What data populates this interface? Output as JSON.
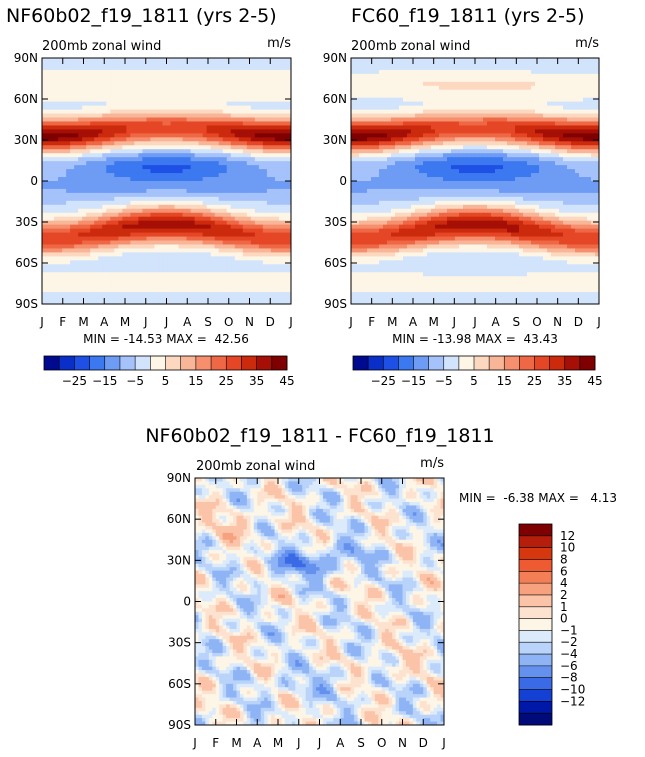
{
  "chart_data": [
    {
      "type": "heatmap",
      "id": "panel1",
      "title": "NF60b02_f19_1811 (yrs 2-5)",
      "subtitle": "200mb zonal wind",
      "units": "m/s",
      "x_ticks": [
        "J",
        "F",
        "M",
        "A",
        "M",
        "J",
        "J",
        "A",
        "S",
        "O",
        "N",
        "D",
        "J"
      ],
      "y_ticks": [
        "90N",
        "60N",
        "30N",
        "0",
        "30S",
        "60S",
        "90S"
      ],
      "min_label": "MIN = -14.53 MAX =  42.56",
      "min": -14.53,
      "max": 42.56,
      "levels": [
        -25,
        -15,
        -5,
        5,
        15,
        25,
        35,
        45
      ],
      "colorbar_labels": [
        "-25",
        "-15",
        "-5",
        "5",
        "15",
        "25",
        "35",
        "45"
      ],
      "colors": [
        "#000a8f",
        "#0a2ec8",
        "#1e50e6",
        "#3c78f0",
        "#6e9cf5",
        "#a5c3fa",
        "#d2e3fc",
        "#fdf5e6",
        "#fbd8bf",
        "#f8b597",
        "#f58f6e",
        "#ef6845",
        "#e54626",
        "#cc2a0c",
        "#a50f05",
        "#7e0000"
      ]
    },
    {
      "type": "heatmap",
      "id": "panel2",
      "title": "FC60_f19_1811 (yrs 2-5)",
      "subtitle": "200mb zonal wind",
      "units": "m/s",
      "x_ticks": [
        "J",
        "F",
        "M",
        "A",
        "M",
        "J",
        "J",
        "A",
        "S",
        "O",
        "N",
        "D",
        "J"
      ],
      "y_ticks": [
        "90N",
        "60N",
        "30N",
        "0",
        "30S",
        "60S",
        "90S"
      ],
      "min_label": "MIN = -13.98 MAX =  43.43",
      "min": -13.98,
      "max": 43.43,
      "levels": [
        -25,
        -15,
        -5,
        5,
        15,
        25,
        35,
        45
      ],
      "colorbar_labels": [
        "-25",
        "-15",
        "-5",
        "5",
        "15",
        "25",
        "35",
        "45"
      ],
      "colors": [
        "#000a8f",
        "#0a2ec8",
        "#1e50e6",
        "#3c78f0",
        "#6e9cf5",
        "#a5c3fa",
        "#d2e3fc",
        "#fdf5e6",
        "#fbd8bf",
        "#f8b597",
        "#f58f6e",
        "#ef6845",
        "#e54626",
        "#cc2a0c",
        "#a50f05",
        "#7e0000"
      ]
    },
    {
      "type": "heatmap",
      "id": "panel3",
      "title": "NF60b02_f19_1811 - FC60_f19_1811",
      "subtitle": "200mb zonal wind",
      "units": "m/s",
      "x_ticks": [
        "J",
        "F",
        "M",
        "A",
        "M",
        "J",
        "J",
        "A",
        "S",
        "O",
        "N",
        "D",
        "J"
      ],
      "y_ticks": [
        "90N",
        "60N",
        "30N",
        "0",
        "30S",
        "60S",
        "90S"
      ],
      "min_label": "MIN =  -6.38 MAX =   4.13",
      "min": -6.38,
      "max": 4.13,
      "levels": [
        12,
        10,
        8,
        6,
        4,
        2,
        1,
        0,
        -1,
        -2,
        -4,
        -6,
        -8,
        -10,
        -12
      ],
      "colorbar_labels": [
        "12",
        "10",
        "8",
        "6",
        "4",
        "2",
        "1",
        "0",
        "−1",
        "−2",
        "−4",
        "−6",
        "−8",
        "−10",
        "−12"
      ],
      "colors": [
        "#7e0000",
        "#b41e0a",
        "#d7370f",
        "#ee5a32",
        "#f47e55",
        "#f8a17e",
        "#fbc3a8",
        "#fde3cf",
        "#fdf5e6",
        "#dcebfc",
        "#b9d3fa",
        "#8fb4f5",
        "#6490ee",
        "#3a6ae6",
        "#1540d4",
        "#0018a8",
        "#000a78"
      ]
    }
  ]
}
